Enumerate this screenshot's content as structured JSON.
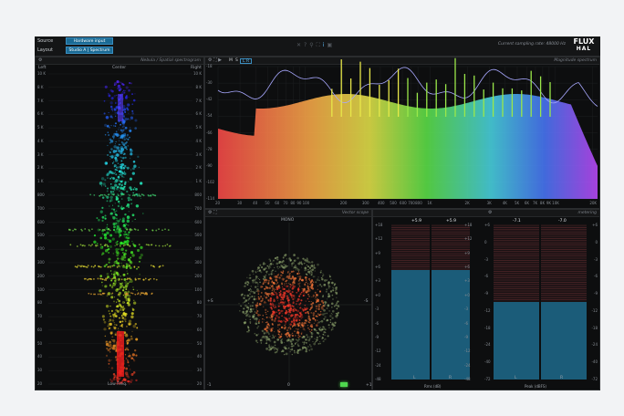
{
  "topbar": {
    "source_label": "Source",
    "source_value": "Hardware input",
    "layout_label": "Layout",
    "layout_value": "Studio A | Spectrum",
    "sampling_rate": "Current sampling rate: 48000 Hz",
    "logo_top": "FLUX",
    "logo_bottom": "HAL"
  },
  "spatial": {
    "title": "Nebula / Spatial spectrogram",
    "left": "Left",
    "center": "Center",
    "right": "Right",
    "bottom": "Low Freq.",
    "ticks": [
      "10 K",
      "8 K",
      "7 K",
      "6 K",
      "5 K",
      "4 K",
      "3 K",
      "2 K",
      "1 K",
      "800",
      "700",
      "600",
      "500",
      "400",
      "300",
      "200",
      "100",
      "80",
      "70",
      "60",
      "50",
      "40",
      "30",
      "20"
    ]
  },
  "magnitude": {
    "title": "Magnitude spectrum",
    "tab_a": "M",
    "tab_b": "S",
    "tab_c": "L R",
    "y_ticks": [
      "-18",
      "-30",
      "-42",
      "-54",
      "-66",
      "-78",
      "-90",
      "-102",
      "-114"
    ],
    "x_ticks": [
      "20",
      "30",
      "40",
      "50",
      "60",
      "70",
      "80",
      "90",
      "100",
      "200",
      "300",
      "400",
      "500",
      "600",
      "700",
      "800",
      "1K",
      "2K",
      "3K",
      "4K",
      "5K",
      "6K",
      "7K",
      "8K",
      "9K",
      "10K",
      "20K"
    ]
  },
  "vector": {
    "title": "Vector scope",
    "mono": "MONO",
    "left_label": "+S",
    "right_label": "-S",
    "bottom_left": "-1",
    "bottom_center": "0",
    "bottom_right": "+1"
  },
  "metering": {
    "title": "metering",
    "rms_top": [
      "+5.9",
      "+5.9"
    ],
    "peak_top": [
      "-7.1",
      "-7.0"
    ],
    "left_ticks": [
      "+18",
      "+12",
      "+9",
      "+6",
      "+3",
      "+0",
      "-3",
      "-6",
      "-9",
      "-12",
      "-24",
      "-48"
    ],
    "right_ticks": [
      "+6",
      "0",
      "-3",
      "-6",
      "-9",
      "-12",
      "-18",
      "-24",
      "-40",
      "-72"
    ],
    "rms_label": "Rms (dB)",
    "peak_label": "Peak (dBFS)",
    "ch_l": "L",
    "ch_r": "R"
  },
  "colors": {
    "accent": "#1a6a94",
    "highlight": "#5ec0ff",
    "meter_fill": "#1e6a8c"
  }
}
